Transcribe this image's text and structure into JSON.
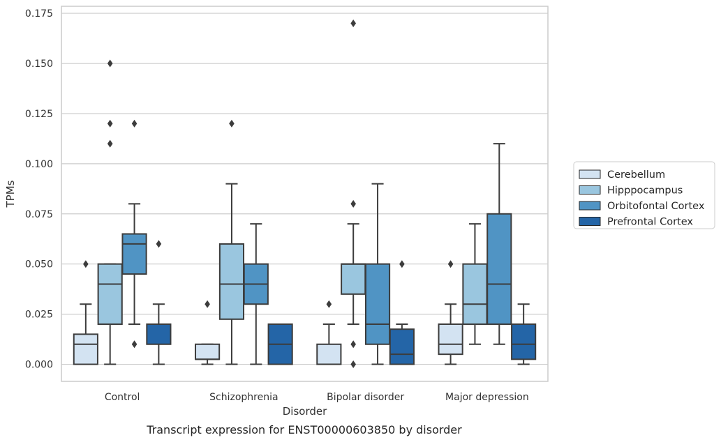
{
  "chart_data": {
    "type": "box",
    "caption": "Transcript expression for ENST00000603850 by disorder",
    "xlabel": "Disorder",
    "ylabel": "TPMs",
    "ylim": [
      -0.0085,
      0.1785
    ],
    "yticks": [
      0.0,
      0.025,
      0.05,
      0.075,
      0.1,
      0.125,
      0.15,
      0.175
    ],
    "ytick_labels": [
      "0.000",
      "0.025",
      "0.050",
      "0.075",
      "0.100",
      "0.125",
      "0.150",
      "0.175"
    ],
    "grid": true,
    "legend_position": "right-outside",
    "categories": [
      "Control",
      "Schizophrenia",
      "Bipolar disorder",
      "Major depression"
    ],
    "series": [
      {
        "name": "Cerebellum",
        "color": "#d3e3f2",
        "boxes": [
          {
            "whisker_low": 0.0,
            "q1": 0.0,
            "median": 0.01,
            "q3": 0.015,
            "whisker_high": 0.03,
            "outliers": [
              0.05
            ]
          },
          {
            "whisker_low": 0.0,
            "q1": 0.0025,
            "median": 0.0025,
            "q3": 0.01,
            "whisker_high": 0.01,
            "outliers": [
              0.03
            ]
          },
          {
            "whisker_low": 0.0,
            "q1": 0.0,
            "median": 0.0,
            "q3": 0.01,
            "whisker_high": 0.02,
            "outliers": [
              0.03
            ]
          },
          {
            "whisker_low": 0.0,
            "q1": 0.005,
            "median": 0.01,
            "q3": 0.02,
            "whisker_high": 0.03,
            "outliers": [
              0.05
            ]
          }
        ]
      },
      {
        "name": "Hipppocampus",
        "color": "#9ac6df",
        "boxes": [
          {
            "whisker_low": 0.0,
            "q1": 0.02,
            "median": 0.04,
            "q3": 0.05,
            "whisker_high": 0.05,
            "outliers": [
              0.11,
              0.12,
              0.15
            ]
          },
          {
            "whisker_low": 0.0,
            "q1": 0.0225,
            "median": 0.04,
            "q3": 0.06,
            "whisker_high": 0.09,
            "outliers": [
              0.12
            ]
          },
          {
            "whisker_low": 0.02,
            "q1": 0.035,
            "median": 0.05,
            "q3": 0.05,
            "whisker_high": 0.07,
            "outliers": [
              0.0,
              0.01,
              0.08,
              0.17
            ]
          },
          {
            "whisker_low": 0.01,
            "q1": 0.02,
            "median": 0.03,
            "q3": 0.05,
            "whisker_high": 0.07,
            "outliers": []
          }
        ]
      },
      {
        "name": "Orbitofontal Cortex",
        "color": "#5094c4",
        "boxes": [
          {
            "whisker_low": 0.02,
            "q1": 0.045,
            "median": 0.06,
            "q3": 0.065,
            "whisker_high": 0.08,
            "outliers": [
              0.01,
              0.12
            ]
          },
          {
            "whisker_low": 0.0,
            "q1": 0.03,
            "median": 0.04,
            "q3": 0.05,
            "whisker_high": 0.07,
            "outliers": []
          },
          {
            "whisker_low": 0.0,
            "q1": 0.01,
            "median": 0.02,
            "q3": 0.05,
            "whisker_high": 0.09,
            "outliers": []
          },
          {
            "whisker_low": 0.01,
            "q1": 0.02,
            "median": 0.04,
            "q3": 0.075,
            "whisker_high": 0.11,
            "outliers": []
          }
        ]
      },
      {
        "name": "Prefrontal Cortex",
        "color": "#2465a7",
        "boxes": [
          {
            "whisker_low": 0.0,
            "q1": 0.01,
            "median": 0.02,
            "q3": 0.02,
            "whisker_high": 0.03,
            "outliers": [
              0.06
            ]
          },
          {
            "whisker_low": 0.0,
            "q1": 0.0,
            "median": 0.01,
            "q3": 0.02,
            "whisker_high": 0.02,
            "outliers": []
          },
          {
            "whisker_low": 0.0,
            "q1": 0.0,
            "median": 0.005,
            "q3": 0.0175,
            "whisker_high": 0.02,
            "outliers": [
              0.05
            ]
          },
          {
            "whisker_low": 0.0,
            "q1": 0.0025,
            "median": 0.01,
            "q3": 0.02,
            "whisker_high": 0.03,
            "outliers": []
          }
        ]
      }
    ]
  }
}
